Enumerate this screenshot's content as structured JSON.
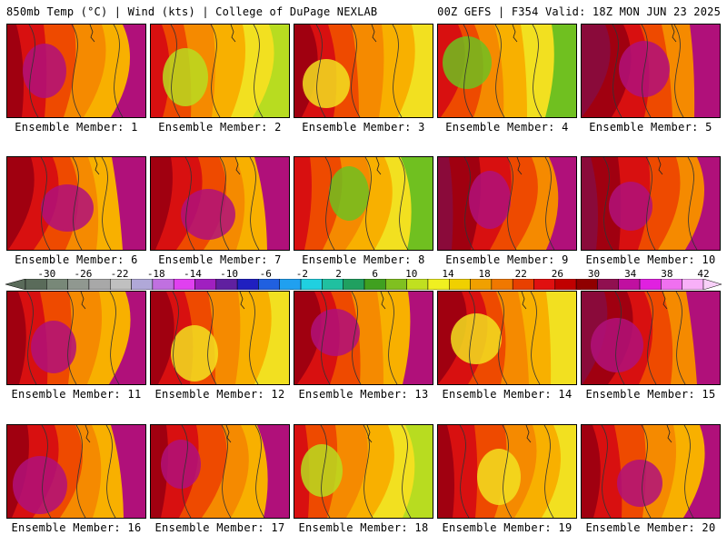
{
  "header": {
    "left": "850mb Temp (°C) | Wind (kts) | College of DuPage NEXLAB",
    "right": "00Z GEFS | F354 Valid: 18Z MON JUN 23 2025"
  },
  "members": [
    {
      "label": "Ensemble Member: 1",
      "style": "hot-west"
    },
    {
      "label": "Ensemble Member: 2",
      "style": "cool-east"
    },
    {
      "label": "Ensemble Member: 3",
      "style": "warm-mixed"
    },
    {
      "label": "Ensemble Member: 4",
      "style": "cool-north"
    },
    {
      "label": "Ensemble Member: 5",
      "style": "hot-wide"
    },
    {
      "label": "Ensemble Member: 6",
      "style": "hot-west"
    },
    {
      "label": "Ensemble Member: 7",
      "style": "hot-west"
    },
    {
      "label": "Ensemble Member: 8",
      "style": "cool-north"
    },
    {
      "label": "Ensemble Member: 9",
      "style": "hot-wide"
    },
    {
      "label": "Ensemble Member: 10",
      "style": "hot-wide"
    },
    {
      "label": "Ensemble Member: 11",
      "style": "hot-west"
    },
    {
      "label": "Ensemble Member: 12",
      "style": "warm-mixed"
    },
    {
      "label": "Ensemble Member: 13",
      "style": "hot-west"
    },
    {
      "label": "Ensemble Member: 14",
      "style": "warm-mixed"
    },
    {
      "label": "Ensemble Member: 15",
      "style": "hot-wide"
    },
    {
      "label": "Ensemble Member: 16",
      "style": "hot-west"
    },
    {
      "label": "Ensemble Member: 17",
      "style": "hot-west"
    },
    {
      "label": "Ensemble Member: 18",
      "style": "cool-east"
    },
    {
      "label": "Ensemble Member: 19",
      "style": "warm-mixed"
    },
    {
      "label": "Ensemble Member: 20",
      "style": "hot-west"
    }
  ],
  "colorbar": {
    "labels": [
      "-30",
      "-26",
      "-22",
      "-18",
      "-14",
      "-10",
      "-6",
      "-2",
      "2",
      "6",
      "10",
      "14",
      "18",
      "22",
      "26",
      "30",
      "34",
      "38",
      "42"
    ],
    "colors": [
      "#5a6b5a",
      "#788878",
      "#909890",
      "#a8a8a8",
      "#c0c0c0",
      "#b0a8d8",
      "#c070e0",
      "#e040f0",
      "#a020c0",
      "#6020a0",
      "#2020c0",
      "#2060e0",
      "#20a0f0",
      "#20d0e0",
      "#20c0a0",
      "#20a060",
      "#40a020",
      "#80c020",
      "#c0e020",
      "#f0f020",
      "#f0d000",
      "#f0a000",
      "#f07800",
      "#e84000",
      "#e01010",
      "#c00000",
      "#900000",
      "#901050",
      "#c010a0",
      "#e020e0",
      "#f070f0",
      "#f8b0f8"
    ]
  },
  "palette": {
    "magenta": "#b0107a",
    "purple": "#8a0a3a",
    "darkred": "#a00010",
    "red": "#d81010",
    "orange_red": "#ee4a00",
    "orange": "#f58a00",
    "amber": "#f8b000",
    "yellow": "#f2e020",
    "lime": "#b8dc20",
    "green": "#70c020"
  }
}
